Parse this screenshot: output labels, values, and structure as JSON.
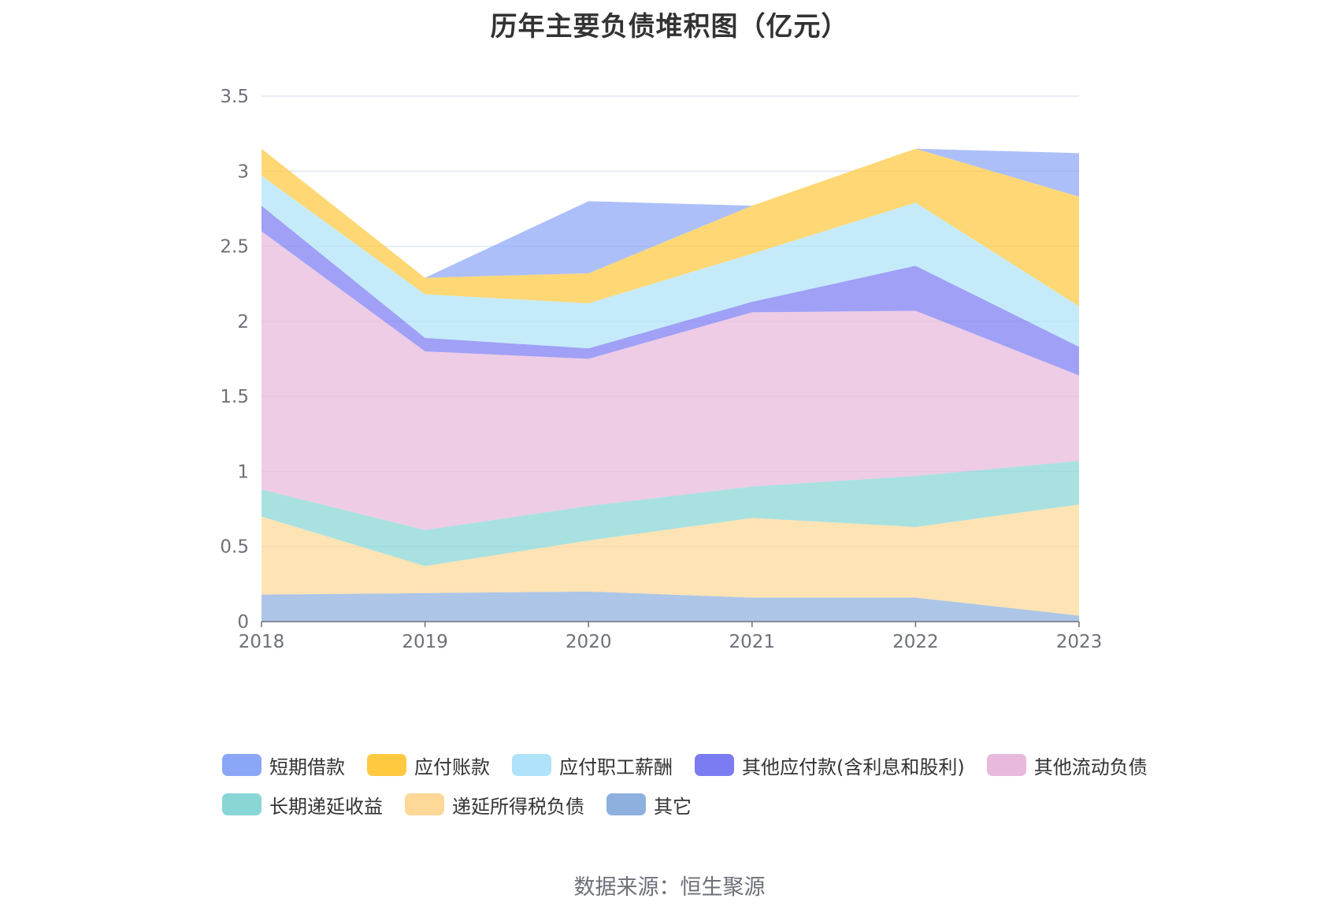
{
  "title": "历年主要负债堆积图（亿元）",
  "source_label": "数据来源：恒生聚源",
  "chart_data": {
    "type": "area",
    "stacked": true,
    "x": [
      "2018",
      "2019",
      "2020",
      "2021",
      "2022",
      "2023"
    ],
    "yticks": [
      "0",
      "0.5",
      "1",
      "1.5",
      "2",
      "2.5",
      "3",
      "3.5"
    ],
    "ylim": [
      0,
      3.5
    ],
    "grid": true,
    "legend_position": "bottom",
    "series": [
      {
        "name": "其它",
        "color": "#8eb0de",
        "values": [
          0.18,
          0.19,
          0.2,
          0.16,
          0.16,
          0.04
        ]
      },
      {
        "name": "递延所得税负债",
        "color": "#fdd897",
        "values": [
          0.52,
          0.18,
          0.34,
          0.53,
          0.47,
          0.74
        ]
      },
      {
        "name": "长期递延收益",
        "color": "#88d6d6",
        "values": [
          0.18,
          0.24,
          0.23,
          0.21,
          0.34,
          0.29
        ]
      },
      {
        "name": "其他流动负债",
        "color": "#e8b9dc",
        "values": [
          1.72,
          1.19,
          0.98,
          1.16,
          1.1,
          0.57
        ]
      },
      {
        "name": "其他应付款(含利息和股利)",
        "color": "#7c7cf2",
        "values": [
          0.17,
          0.09,
          0.07,
          0.07,
          0.3,
          0.19
        ]
      },
      {
        "name": "应付职工薪酬",
        "color": "#aee3fa",
        "values": [
          0.2,
          0.29,
          0.3,
          0.32,
          0.42,
          0.27
        ]
      },
      {
        "name": "应付账款",
        "color": "#ffc940",
        "values": [
          0.18,
          0.11,
          0.2,
          0.32,
          0.36,
          0.73
        ]
      },
      {
        "name": "短期借款",
        "color": "#8ca6f7",
        "values": [
          0.0,
          0.0,
          0.48,
          0.0,
          0.0,
          0.29
        ]
      }
    ],
    "legend_order": [
      "短期借款",
      "应付账款",
      "应付职工薪酬",
      "其他应付款(含利息和股利)",
      "其他流动负债",
      "长期递延收益",
      "递延所得税负债",
      "其它"
    ]
  }
}
